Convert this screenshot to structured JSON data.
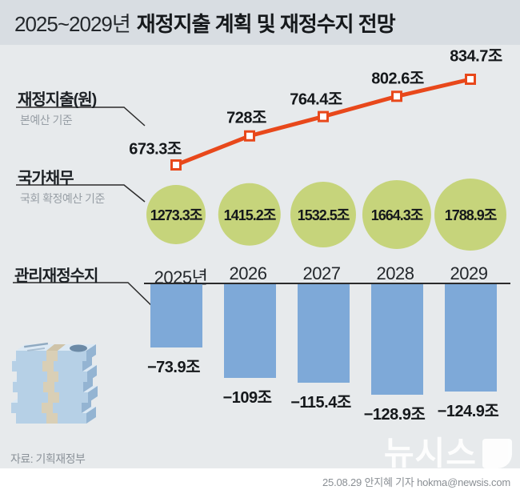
{
  "title": {
    "period": "2025~2029년",
    "main": "재정지출 계획 및 재정수지 전망"
  },
  "sections": {
    "expenditure": {
      "label": "재정지출(원)",
      "basis": "본예산 기준"
    },
    "debt": {
      "label": "국가채무",
      "basis": "국회 확정예산 기준"
    },
    "balance": {
      "label": "관리재정수지"
    }
  },
  "footer": {
    "source": "자료: 기획재정부",
    "byline": "25.08.29 안지혜 기자 hokma@newsis.com",
    "watermark": "뉴시스"
  },
  "colors": {
    "line": "#e8481b",
    "bubble": "#c6d47b",
    "bar": "#7ea9d8",
    "title_bg": "#d8dde2",
    "body_bg": "#e7eaec",
    "axis": "#2b2b2b"
  },
  "chart_data": [
    {
      "type": "line",
      "name": "재정지출",
      "unit": "조원",
      "categories": [
        "2025년",
        "2026",
        "2027",
        "2028",
        "2029"
      ],
      "values": [
        673.3,
        728,
        764.4,
        802.6,
        834.7
      ],
      "point_labels": [
        "673.3조",
        "728조",
        "764.4조",
        "802.6조",
        "834.7조"
      ],
      "color": "#e8481b",
      "marker": "open-square",
      "legend_position": "left",
      "grid": false
    },
    {
      "type": "scatter",
      "subtype": "bubble-row",
      "name": "국가채무",
      "unit": "조원",
      "categories": [
        "2025년",
        "2026",
        "2027",
        "2028",
        "2029"
      ],
      "values": [
        1273.3,
        1415.2,
        1532.5,
        1664.3,
        1788.9
      ],
      "point_labels": [
        "1273.3조",
        "1415.2조",
        "1532.5조",
        "1664.3조",
        "1788.9조"
      ],
      "color": "#c6d47b",
      "grid": false
    },
    {
      "type": "bar",
      "name": "관리재정수지",
      "unit": "조원",
      "categories": [
        "2025년",
        "2026",
        "2027",
        "2028",
        "2029"
      ],
      "values": [
        -73.9,
        -109,
        -115.4,
        -128.9,
        -124.9
      ],
      "point_labels": [
        "−73.9조",
        "−109조",
        "−115.4조",
        "−128.9조",
        "−124.9조"
      ],
      "color": "#7ea9d8",
      "baseline": 0,
      "grid": false
    }
  ]
}
